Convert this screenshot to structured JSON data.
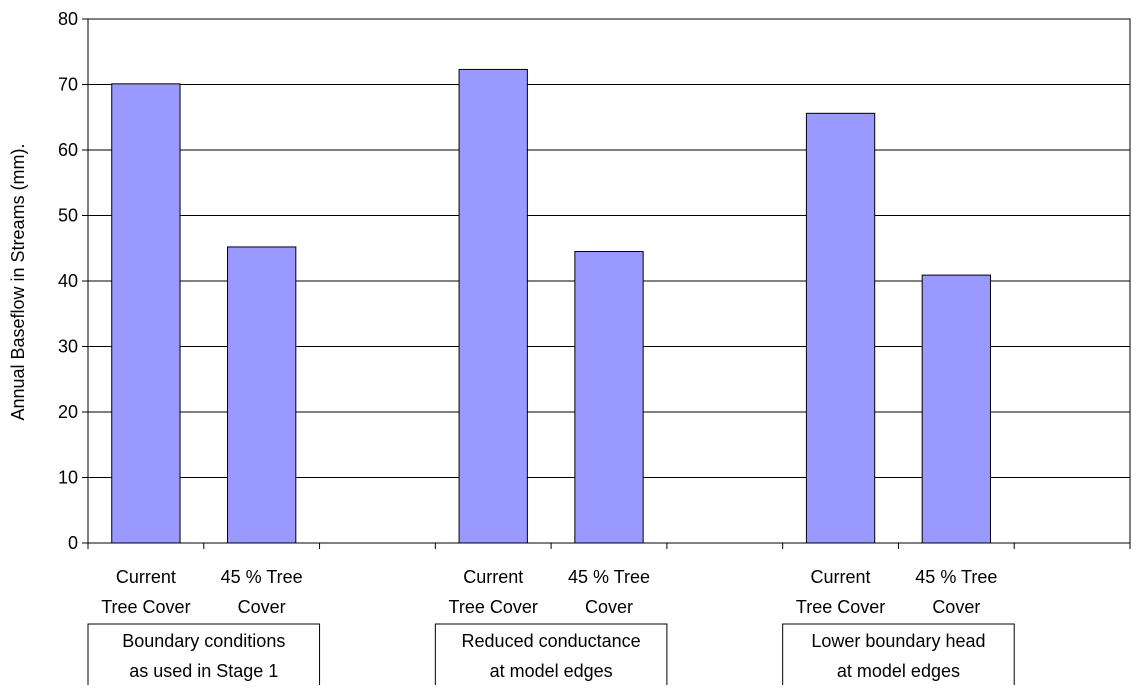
{
  "chart_data": {
    "type": "bar",
    "title": "",
    "xlabel": "",
    "ylabel": "Annual Baseflow in Streams (mm).",
    "ylim": [
      0,
      80
    ],
    "yticks": [
      0,
      10,
      20,
      30,
      40,
      50,
      60,
      70,
      80
    ],
    "grid": true,
    "legend": "none",
    "bar_color": "#9999ff",
    "bar_stroke": "#000000",
    "categories": [
      [
        "Current",
        "Tree Cover"
      ],
      [
        "45 % Tree",
        "Cover"
      ],
      [
        "Current",
        "Tree Cover"
      ],
      [
        "45 % Tree",
        "Cover"
      ],
      [
        "Current",
        "Tree Cover"
      ],
      [
        "45 % Tree",
        "Cover"
      ]
    ],
    "values": [
      70.1,
      45.2,
      72.3,
      44.5,
      65.6,
      40.9
    ],
    "groups": [
      {
        "label": [
          "Boundary conditions",
          "as used in Stage 1"
        ]
      },
      {
        "label": [
          "Reduced conductance",
          "at model edges"
        ]
      },
      {
        "label": [
          "Lower boundary head",
          "at model edges"
        ]
      }
    ]
  }
}
